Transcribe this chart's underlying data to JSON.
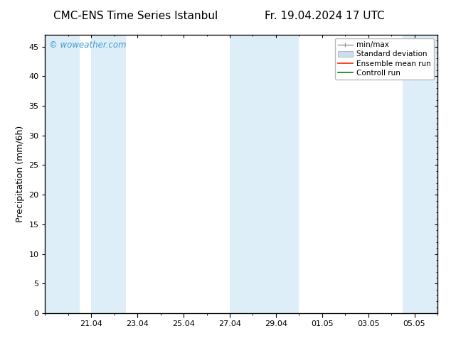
{
  "title_left": "CMC-ENS Time Series Istanbul",
  "title_right": "Fr. 19.04.2024 17 UTC",
  "ylabel": "Precipitation (mm/6h)",
  "watermark": "© woweather.com",
  "watermark_color": "#4499cc",
  "background_color": "#ffffff",
  "plot_bg_color": "#ffffff",
  "ylim": [
    0,
    47
  ],
  "yticks": [
    0,
    5,
    10,
    15,
    20,
    25,
    30,
    35,
    40,
    45
  ],
  "band_color": "#ddeef8",
  "xtick_labels": [
    "21.04",
    "23.04",
    "25.04",
    "27.04",
    "29.04",
    "01.05",
    "03.05",
    "05.05"
  ],
  "legend_entries": [
    {
      "label": "min/max",
      "color": "#aaaaaa",
      "type": "errorbar"
    },
    {
      "label": "Standard deviation",
      "color": "#bbccdd",
      "type": "fill"
    },
    {
      "label": "Ensemble mean run",
      "color": "#ff0000",
      "type": "line"
    },
    {
      "label": "Controll run",
      "color": "#00aa00",
      "type": "line"
    }
  ],
  "title_fontsize": 11,
  "tick_fontsize": 8,
  "legend_fontsize": 7.5,
  "ylabel_fontsize": 9
}
